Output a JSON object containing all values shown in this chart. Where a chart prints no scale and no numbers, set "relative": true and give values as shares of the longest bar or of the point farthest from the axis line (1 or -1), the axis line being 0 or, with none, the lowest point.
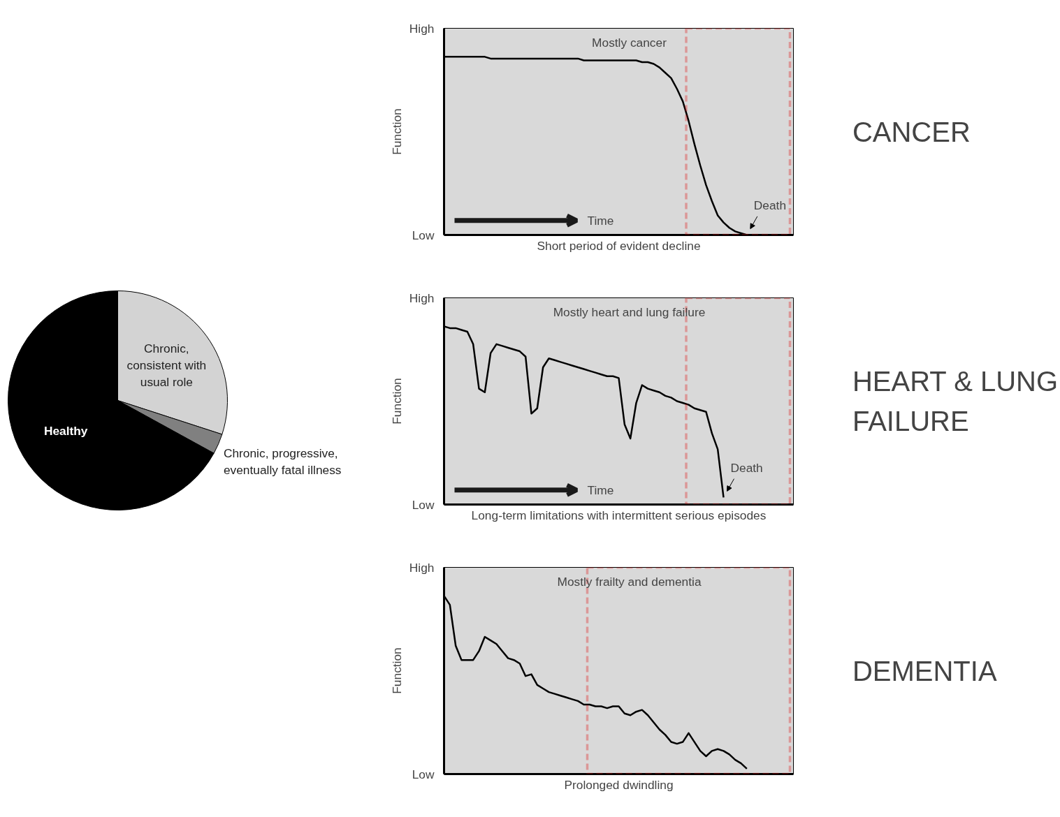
{
  "chart_data": [
    {
      "type": "pie",
      "categories": [
        "Chronic, consistent with usual role",
        "Chronic, progressive, eventually fatal illness",
        "Healthy"
      ],
      "values": [
        30,
        3,
        67
      ],
      "colors": [
        "#d3d3d3",
        "#808080",
        "#000000"
      ]
    },
    {
      "type": "line",
      "relative": true,
      "xlabel": "Short period of evident decline",
      "ylabel": "Function",
      "tick_labels": "y",
      "color": "#000000",
      "categories": [
        null,
        null,
        null,
        null,
        null,
        null,
        null,
        null,
        null,
        null,
        null,
        null,
        null,
        null,
        null,
        null,
        null,
        null,
        null,
        null,
        null,
        null,
        null,
        null,
        null,
        null,
        null,
        null,
        null,
        null,
        null,
        null,
        null,
        null,
        null,
        null,
        null,
        null,
        null,
        null,
        null,
        null,
        null,
        null,
        null,
        null,
        null,
        null,
        null,
        null,
        null,
        null,
        null,
        null,
        null,
        null,
        null,
        null,
        null,
        null,
        null
      ],
      "values": [
        1.0,
        1.0,
        1.0,
        1.0,
        1.0,
        1.0,
        1.0,
        1.0,
        0.99,
        0.99,
        0.99,
        0.99,
        0.99,
        0.99,
        0.99,
        0.99,
        0.99,
        0.99,
        0.99,
        0.99,
        0.99,
        0.99,
        0.99,
        0.99,
        0.98,
        0.98,
        0.98,
        0.98,
        0.98,
        0.98,
        0.98,
        0.98,
        0.98,
        0.98,
        0.97,
        0.97,
        0.96,
        0.94,
        0.91,
        0.88,
        0.82,
        0.75,
        0.64,
        0.51,
        0.39,
        0.28,
        0.19,
        0.11,
        0.07,
        0.04,
        0.02,
        0.01,
        0,
        null,
        null,
        null,
        null,
        null,
        null,
        null,
        null
      ],
      "annotations": [
        "High",
        "Low",
        "Mostly cancer",
        "CANCER",
        "Time",
        "Death"
      ]
    },
    {
      "type": "line",
      "relative": true,
      "xlabel": "Long-term limitations with intermittent serious episodes",
      "ylabel": "Function",
      "tick_labels": "y",
      "color": "#000000",
      "categories": [
        null,
        null,
        null,
        null,
        null,
        null,
        null,
        null,
        null,
        null,
        null,
        null,
        null,
        null,
        null,
        null,
        null,
        null,
        null,
        null,
        null,
        null,
        null,
        null,
        null,
        null,
        null,
        null,
        null,
        null,
        null,
        null,
        null,
        null,
        null,
        null,
        null,
        null,
        null,
        null,
        null,
        null,
        null,
        null,
        null,
        null,
        null,
        null,
        null,
        null,
        null,
        null,
        null,
        null,
        null,
        null,
        null,
        null,
        null,
        null,
        null
      ],
      "values": [
        1.0,
        0.99,
        0.99,
        0.98,
        0.97,
        0.9,
        0.65,
        0.63,
        0.85,
        0.9,
        0.89,
        0.88,
        0.87,
        0.86,
        0.83,
        0.51,
        0.54,
        0.77,
        0.82,
        0.81,
        0.8,
        0.79,
        0.78,
        0.77,
        0.76,
        0.75,
        0.74,
        0.73,
        0.72,
        0.72,
        0.71,
        0.45,
        0.37,
        0.57,
        0.67,
        0.65,
        0.64,
        0.63,
        0.61,
        0.6,
        0.58,
        0.57,
        0.56,
        0.54,
        0.53,
        0.52,
        0.4,
        0.31,
        0.04,
        null,
        null,
        null,
        null,
        null,
        null,
        null,
        null,
        null,
        null,
        null,
        null
      ],
      "annotations": [
        "High",
        "Low",
        "Mostly heart and lung failure",
        "HEART & LUNG FAILURE",
        "Time",
        "Death"
      ]
    },
    {
      "type": "line",
      "relative": true,
      "xlabel": "Prolonged dwindling",
      "ylabel": "Function",
      "tick_labels": "y",
      "color": "#000000",
      "categories": [
        null,
        null,
        null,
        null,
        null,
        null,
        null,
        null,
        null,
        null,
        null,
        null,
        null,
        null,
        null,
        null,
        null,
        null,
        null,
        null,
        null,
        null,
        null,
        null,
        null,
        null,
        null,
        null,
        null,
        null,
        null,
        null,
        null,
        null,
        null,
        null,
        null,
        null,
        null,
        null,
        null,
        null,
        null,
        null,
        null,
        null,
        null,
        null,
        null,
        null,
        null,
        null,
        null,
        null,
        null,
        null,
        null,
        null,
        null,
        null,
        null
      ],
      "values": [
        1.0,
        0.95,
        0.72,
        0.64,
        0.64,
        0.64,
        0.69,
        0.77,
        0.75,
        0.73,
        0.69,
        0.65,
        0.64,
        0.62,
        0.55,
        0.56,
        0.5,
        0.48,
        0.46,
        0.45,
        0.44,
        0.43,
        0.42,
        0.41,
        0.39,
        0.39,
        0.38,
        0.38,
        0.37,
        0.38,
        0.38,
        0.34,
        0.33,
        0.35,
        0.36,
        0.33,
        0.29,
        0.25,
        0.22,
        0.18,
        0.17,
        0.18,
        0.23,
        0.18,
        0.13,
        0.1,
        0.13,
        0.14,
        0.13,
        0.11,
        0.08,
        0.06,
        0.03,
        null,
        null,
        null,
        null,
        null,
        null,
        null,
        null
      ],
      "annotations": [
        "High",
        "Low",
        "Mostly frailty and dementia",
        "DEMENTIA"
      ]
    }
  ]
}
